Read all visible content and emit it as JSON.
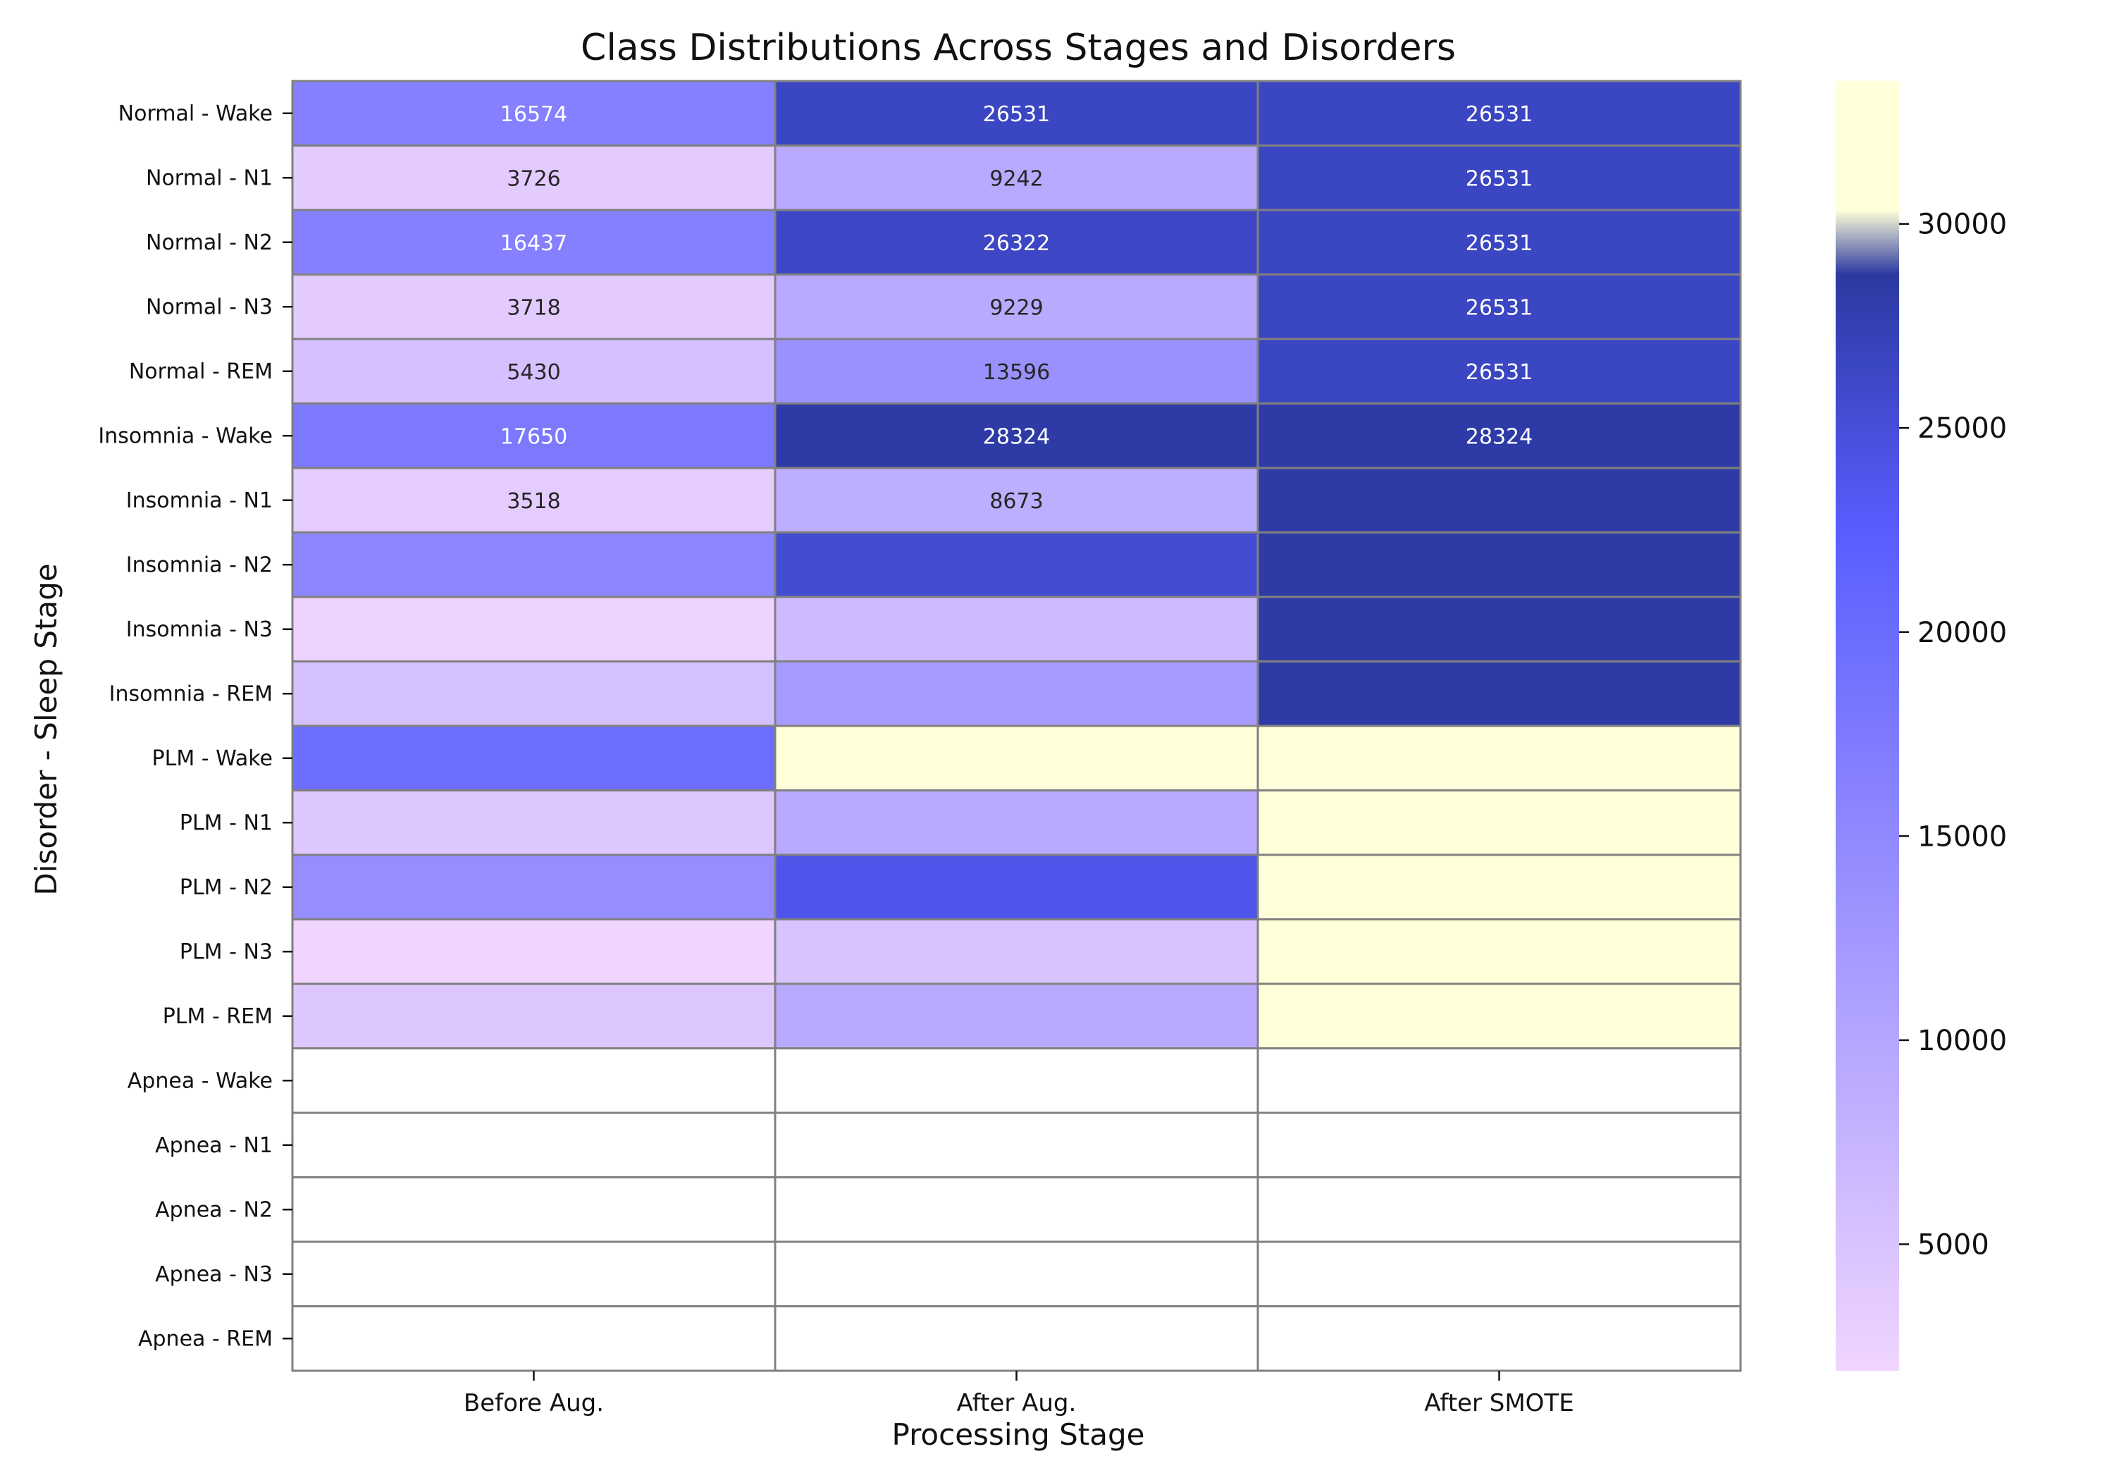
{
  "chart_data": {
    "type": "heatmap",
    "title": "Class Distributions Across Stages and Disorders",
    "xlabel": "Processing Stage",
    "ylabel": "Disorder - Sleep Stage",
    "columns": [
      "Before Aug.",
      "After Aug.",
      "After SMOTE"
    ],
    "rows": [
      "Normal - Wake",
      "Normal - N1",
      "Normal - N2",
      "Normal - N3",
      "Normal - REM",
      "Insomnia - Wake",
      "Insomnia - N1",
      "Insomnia - N2",
      "Insomnia - N3",
      "Insomnia - REM",
      "PLM - Wake",
      "PLM - N1",
      "PLM - N2",
      "PLM - N3",
      "PLM - REM",
      "Apnea - Wake",
      "Apnea - N1",
      "Apnea - N2",
      "Apnea - N3",
      "Apnea - REM"
    ],
    "values": [
      [
        16574,
        26531,
        26531
      ],
      [
        3726,
        9242,
        26531
      ],
      [
        16437,
        26322,
        26531
      ],
      [
        3718,
        9229,
        26531
      ],
      [
        5430,
        13596,
        26531
      ],
      [
        17650,
        28324,
        28324
      ],
      [
        3518,
        8673,
        28324
      ],
      [
        15500,
        25500,
        28324
      ],
      [
        2300,
        6500,
        28324
      ],
      [
        5400,
        11800,
        28324
      ],
      [
        19800,
        33500,
        33500
      ],
      [
        4400,
        9300,
        33500
      ],
      [
        14200,
        23800,
        33500
      ],
      [
        1900,
        5000,
        33500
      ],
      [
        4300,
        9500,
        33500
      ],
      [
        null,
        null,
        null
      ],
      [
        null,
        null,
        null
      ],
      [
        null,
        null,
        null
      ],
      [
        null,
        null,
        null
      ],
      [
        null,
        null,
        null
      ]
    ],
    "annotations": [
      [
        "16574",
        "26531",
        "26531"
      ],
      [
        "3726",
        "9242",
        "26531"
      ],
      [
        "16437",
        "26322",
        "26531"
      ],
      [
        "3718",
        "9229",
        "26531"
      ],
      [
        "5430",
        "13596",
        "26531"
      ],
      [
        "17650",
        "28324",
        "28324"
      ],
      [
        "3518",
        "8673",
        ""
      ],
      [
        "",
        "",
        ""
      ],
      [
        "",
        "",
        ""
      ],
      [
        "",
        "",
        ""
      ],
      [
        "",
        "",
        ""
      ],
      [
        "",
        "",
        ""
      ],
      [
        "",
        "",
        ""
      ],
      [
        "",
        "",
        ""
      ],
      [
        "",
        "",
        ""
      ],
      [
        "",
        "",
        ""
      ],
      [
        "",
        "",
        ""
      ],
      [
        "",
        "",
        ""
      ],
      [
        "",
        "",
        ""
      ],
      [
        "",
        "",
        ""
      ]
    ],
    "colorbar": {
      "colormap": "YlGnBu",
      "range": [
        1900,
        33500
      ],
      "ticks": [
        5000,
        10000,
        15000,
        20000,
        25000,
        30000
      ]
    },
    "missing_color": "#ffffff",
    "grid_line_color": "#808080"
  }
}
